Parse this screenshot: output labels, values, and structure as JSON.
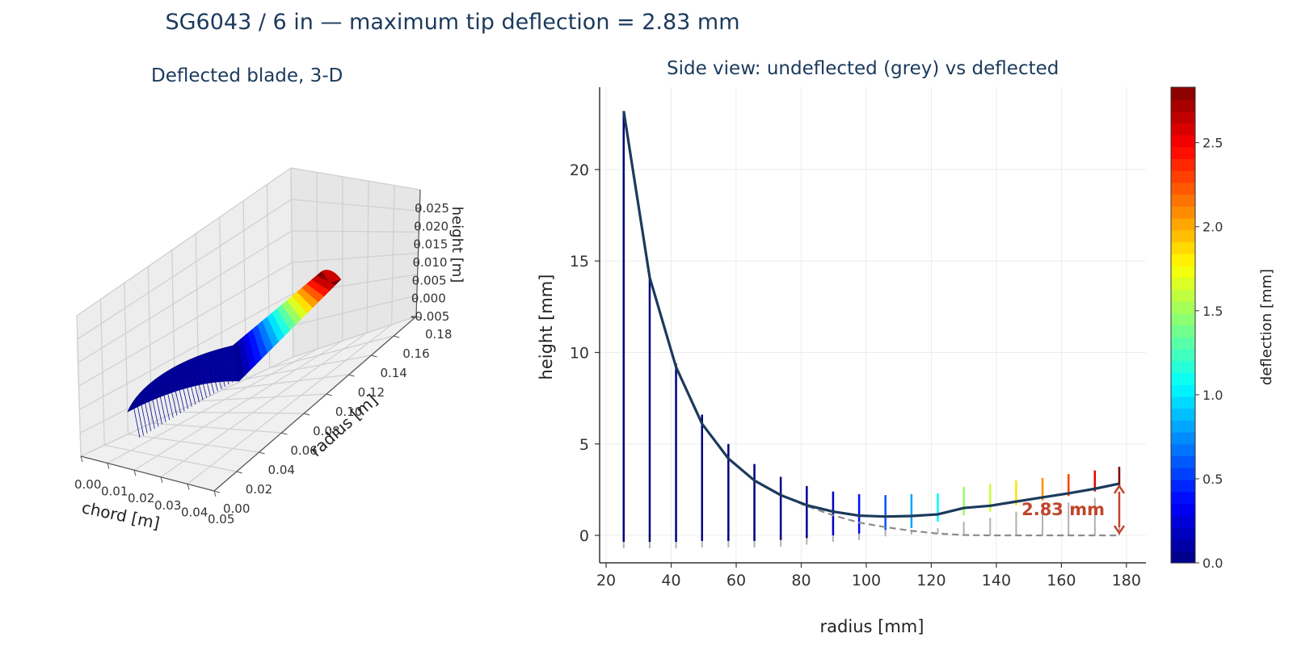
{
  "figure": {
    "title": "SG6043 / 6 in  —  maximum tip deflection = 2.83 mm"
  },
  "colors": {
    "title": "#1b3a5c",
    "deflected_line": "#1b3a5c",
    "undeflected_line": "#8c8c8c",
    "annotation": "#c0452b"
  },
  "chart_data": [
    {
      "type": "surface3d",
      "title": "Deflected blade, 3-D",
      "xlabel": "chord [m]",
      "ylabel": "radius [m]",
      "zlabel": "height [m]",
      "x_ticks": [
        "0.00",
        "0.01",
        "0.02",
        "0.03",
        "0.04",
        "0.05"
      ],
      "y_ticks": [
        "0.00",
        "0.02",
        "0.04",
        "0.06",
        "0.08",
        "0.10",
        "0.12",
        "0.14",
        "0.16",
        "0.18"
      ],
      "z_ticks": [
        "-0.005",
        "0.000",
        "0.005",
        "0.010",
        "0.015",
        "0.020",
        "0.025"
      ],
      "colormap": "jet",
      "color_by": "deflection"
    },
    {
      "type": "line",
      "title": "Side view: undeflected (grey) vs deflected",
      "xlabel": "radius [mm]",
      "ylabel": "height [mm]",
      "xlim": [
        18,
        186
      ],
      "ylim": [
        -1.5,
        24.5
      ],
      "x_ticks": [
        20,
        40,
        60,
        80,
        100,
        120,
        140,
        160,
        180
      ],
      "y_ticks": [
        0,
        5,
        10,
        15,
        20
      ],
      "grid": true,
      "x": [
        25.4,
        33.4,
        41.5,
        49.5,
        57.6,
        65.6,
        73.7,
        81.7,
        89.8,
        97.8,
        105.9,
        113.9,
        122.0,
        130.0,
        138.1,
        146.1,
        154.2,
        162.2,
        170.3,
        177.8
      ],
      "undeflected": [
        23.2,
        14.1,
        9.2,
        6.1,
        4.2,
        3.0,
        2.2,
        1.6,
        1.1,
        0.7,
        0.45,
        0.25,
        0.1,
        0.02,
        0.0,
        0.0,
        0.0,
        0.0,
        0.0,
        0.0
      ],
      "deflected": [
        23.2,
        14.1,
        9.2,
        6.1,
        4.2,
        3.0,
        2.2,
        1.65,
        1.3,
        1.08,
        1.03,
        1.06,
        1.15,
        1.5,
        1.62,
        1.85,
        2.08,
        2.3,
        2.55,
        2.83
      ],
      "spar_top": [
        23.2,
        14.1,
        9.4,
        6.6,
        5.0,
        3.9,
        3.2,
        2.7,
        2.4,
        2.25,
        2.2,
        2.25,
        2.3,
        2.65,
        2.8,
        3.0,
        3.15,
        3.35,
        3.55,
        3.75
      ],
      "spar_bottom": [
        -0.35,
        -0.35,
        -0.35,
        -0.3,
        -0.3,
        -0.3,
        -0.25,
        -0.15,
        0.0,
        0.1,
        0.3,
        0.4,
        0.75,
        1.1,
        1.3,
        1.65,
        1.9,
        2.15,
        2.4,
        2.7
      ],
      "spar_deflection": [
        0.0,
        0.0,
        0.0,
        0.0,
        0.0,
        0.0,
        0.02,
        0.05,
        0.2,
        0.38,
        0.58,
        0.81,
        1.05,
        1.48,
        1.62,
        1.85,
        2.08,
        2.3,
        2.55,
        2.83
      ],
      "annotation": {
        "text": "2.83 mm",
        "x": 177.8,
        "y_from": 0.0,
        "y_to": 2.83
      },
      "colorbar": {
        "label": "deflection [mm]",
        "colormap": "jet",
        "range": [
          0,
          2.83
        ],
        "ticks": [
          0.0,
          0.5,
          1.0,
          1.5,
          2.0,
          2.5
        ],
        "tick_labels": [
          "0.0",
          "0.5",
          "1.0",
          "1.5",
          "2.0",
          "2.5"
        ]
      }
    }
  ]
}
